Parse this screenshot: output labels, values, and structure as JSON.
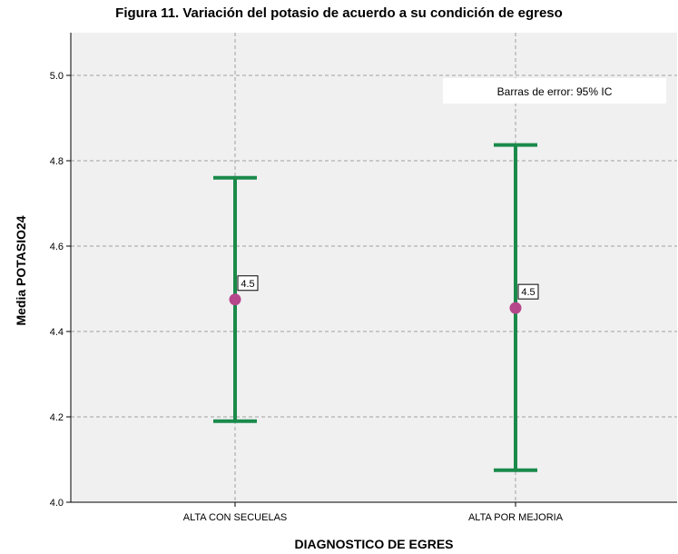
{
  "chart_data": {
    "type": "errorbar",
    "title": "Figura 11. Variación del potasio de acuerdo a su condición de egreso",
    "xlabel": "DIAGNOSTICO DE EGRES",
    "ylabel": "Media POTASIO24",
    "annotation": "Barras de error: 95% IC",
    "ylim": [
      4.0,
      5.1
    ],
    "yticks": [
      4.0,
      4.2,
      4.4,
      4.6,
      4.8,
      5.0
    ],
    "ytick_labels": [
      "4.0",
      "4.2",
      "4.4",
      "4.6",
      "4.8",
      "5.0"
    ],
    "grid": true,
    "categories": [
      "ALTA CON SECUELAS",
      "ALTA POR MEJORIA"
    ],
    "series": [
      {
        "mean": [
          4.475,
          4.455
        ],
        "lower": [
          4.19,
          4.075
        ],
        "upper": [
          4.76,
          4.837
        ],
        "labels": [
          "4.5",
          "4.5"
        ]
      }
    ],
    "colors": {
      "errorbar": "#1a8a4a",
      "marker": "#b5478a",
      "plot_bg": "#f0f0f0",
      "grid": "#a0a0a0"
    }
  }
}
